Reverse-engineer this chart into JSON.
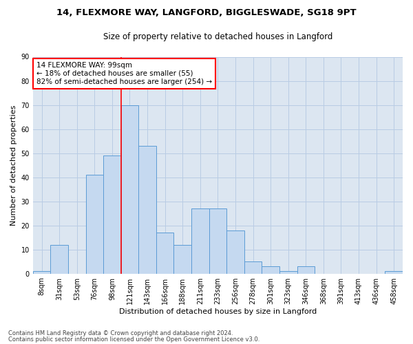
{
  "title1": "14, FLEXMORE WAY, LANGFORD, BIGGLESWADE, SG18 9PT",
  "title2": "Size of property relative to detached houses in Langford",
  "xlabel": "Distribution of detached houses by size in Langford",
  "ylabel": "Number of detached properties",
  "footnote1": "Contains HM Land Registry data © Crown copyright and database right 2024.",
  "footnote2": "Contains public sector information licensed under the Open Government Licence v3.0.",
  "bin_labels": [
    "8sqm",
    "31sqm",
    "53sqm",
    "76sqm",
    "98sqm",
    "121sqm",
    "143sqm",
    "166sqm",
    "188sqm",
    "211sqm",
    "233sqm",
    "256sqm",
    "278sqm",
    "301sqm",
    "323sqm",
    "346sqm",
    "368sqm",
    "391sqm",
    "413sqm",
    "436sqm",
    "458sqm"
  ],
  "bar_values": [
    1,
    12,
    0,
    41,
    49,
    70,
    53,
    17,
    12,
    27,
    27,
    18,
    5,
    3,
    1,
    3,
    0,
    0,
    0,
    0,
    1
  ],
  "bar_color": "#c5d9f0",
  "bar_edge_color": "#5b9bd5",
  "highlight_line_index": 4,
  "annotation_text": "14 FLEXMORE WAY: 99sqm\n← 18% of detached houses are smaller (55)\n82% of semi-detached houses are larger (254) →",
  "annotation_box_color": "white",
  "annotation_box_edge_color": "red",
  "ylim": [
    0,
    90
  ],
  "yticks": [
    0,
    10,
    20,
    30,
    40,
    50,
    60,
    70,
    80,
    90
  ],
  "grid_color": "#b8cce4",
  "background_color": "#dce6f1",
  "title1_fontsize": 9.5,
  "title2_fontsize": 8.5,
  "axis_label_fontsize": 8,
  "tick_fontsize": 7,
  "annotation_fontsize": 7.5,
  "footnote_fontsize": 6
}
